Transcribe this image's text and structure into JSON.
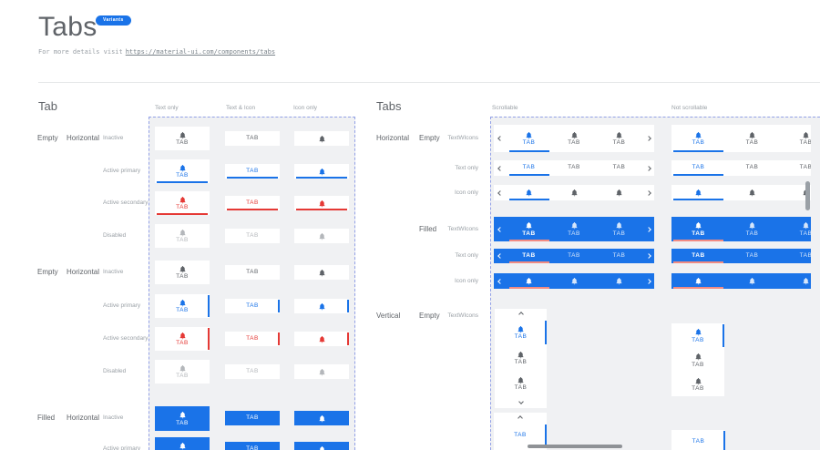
{
  "page": {
    "title": "Tabs",
    "badge": "Variants",
    "subtitle_prefix": "For more details visit",
    "subtitle_link": "https://material-ui.com/components/tabs"
  },
  "colors": {
    "primary": "#1a73e8",
    "secondary": "#e53935",
    "inactive": "#5f6368",
    "disabled": "#b4b7bb",
    "filled_active_indicator": "#f28b82",
    "panel_background": "#f0f1f3",
    "dashed_border": "#92a0e6"
  },
  "left_section": {
    "heading": "Tab",
    "column_headers": [
      "Text only",
      "Text & Icon",
      "Icon only"
    ],
    "tab_label": "TAB",
    "groups": [
      {
        "variant": "Empty",
        "orientation": "Horizontal",
        "fill": "empty",
        "indicator_side": "bottom",
        "rows": [
          {
            "label": "Inactive",
            "state": "inactive"
          },
          {
            "label": "Active primary",
            "state": "primary"
          },
          {
            "label": "Active secondary",
            "state": "secondary"
          },
          {
            "label": "Disabled",
            "state": "disabled"
          }
        ]
      },
      {
        "variant": "Empty",
        "orientation": "Horizontal",
        "fill": "empty",
        "indicator_side": "right",
        "rows": [
          {
            "label": "Inactive",
            "state": "inactive"
          },
          {
            "label": "Active primary",
            "state": "primary"
          },
          {
            "label": "Active secondary",
            "state": "secondary"
          },
          {
            "label": "Disabled",
            "state": "disabled"
          }
        ]
      },
      {
        "variant": "Filled",
        "orientation": "Horizontal",
        "fill": "filled",
        "indicator_side": "bottom",
        "rows": [
          {
            "label": "Inactive",
            "state": "filled"
          },
          {
            "label": "Active primary",
            "state": "filled"
          }
        ]
      }
    ]
  },
  "right_section": {
    "heading": "Tabs",
    "column_headers": [
      "Scrollable",
      "Not scrollable"
    ],
    "tab_label": "TAB",
    "groups": [
      {
        "orientation": "Horizontal",
        "variant": "Empty",
        "fill": "empty",
        "rows": [
          {
            "label": "TextWIcons",
            "mode": "icontext"
          },
          {
            "label": "Text only",
            "mode": "text"
          },
          {
            "label": "Icon only",
            "mode": "icon"
          }
        ]
      },
      {
        "orientation": "",
        "variant": "Filled",
        "fill": "filled",
        "rows": [
          {
            "label": "TextWIcons",
            "mode": "icontext"
          },
          {
            "label": "Text only",
            "mode": "text"
          },
          {
            "label": "Icon only",
            "mode": "icon"
          }
        ]
      },
      {
        "orientation": "Vertical",
        "variant": "Empty",
        "fill": "empty",
        "rows": [
          {
            "label": "TextWIcons",
            "mode": "icontext"
          }
        ]
      },
      {
        "orientation": "",
        "variant": "",
        "fill": "empty",
        "rows": [
          {
            "label": "",
            "mode": "text"
          }
        ]
      }
    ]
  }
}
